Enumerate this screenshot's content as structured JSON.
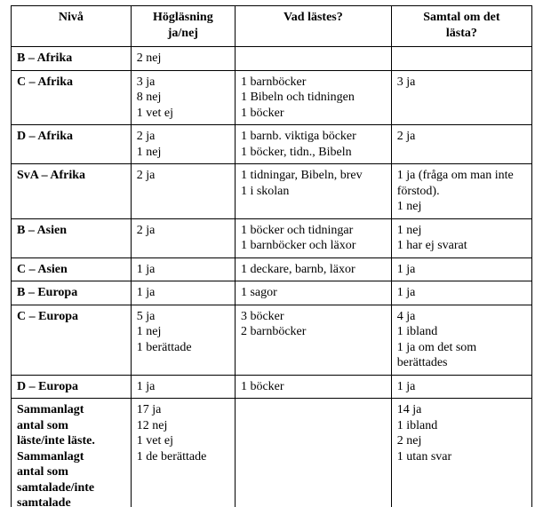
{
  "table": {
    "columns": [
      {
        "l1": "Nivå",
        "l2": ""
      },
      {
        "l1": "Högläsning",
        "l2": "ja/nej"
      },
      {
        "l1": "Vad lästes?",
        "l2": ""
      },
      {
        "l1": "Samtal om det",
        "l2": "lästa?"
      }
    ],
    "rows": [
      {
        "level": "B – Afrika",
        "hoglasning": [
          "2 nej"
        ],
        "vad": [],
        "samtal": []
      },
      {
        "level": "C – Afrika",
        "hoglasning": [
          "3 ja",
          "8 nej",
          "1 vet ej"
        ],
        "vad": [
          "1 barnböcker",
          "1 Bibeln och tidningen",
          "1 böcker"
        ],
        "samtal": [
          "3 ja"
        ]
      },
      {
        "level": "D – Afrika",
        "hoglasning": [
          "2 ja",
          "1 nej"
        ],
        "vad": [
          "1 barnb. viktiga böcker",
          "1 böcker, tidn., Bibeln"
        ],
        "samtal": [
          "2 ja"
        ]
      },
      {
        "level": "SvA – Afrika",
        "hoglasning": [
          "2 ja"
        ],
        "vad": [
          "1 tidningar, Bibeln, brev",
          "1 i skolan"
        ],
        "samtal": [
          "1 ja (fråga om man inte förstod).",
          "1 nej"
        ]
      },
      {
        "level": "B – Asien",
        "hoglasning": [
          "2 ja"
        ],
        "vad": [
          "1 böcker och tidningar",
          "1 barnböcker och läxor"
        ],
        "samtal": [
          "1 nej",
          "1 har ej svarat"
        ]
      },
      {
        "level": "C – Asien",
        "hoglasning": [
          "1 ja"
        ],
        "vad": [
          "1 deckare, barnb, läxor"
        ],
        "samtal": [
          "1 ja"
        ]
      },
      {
        "level": "B – Europa",
        "hoglasning": [
          "1 ja"
        ],
        "vad": [
          "1 sagor"
        ],
        "samtal": [
          "1 ja"
        ]
      },
      {
        "level": "C – Europa",
        "hoglasning": [
          "5 ja",
          "1 nej",
          "1 berättade"
        ],
        "vad": [
          "3 böcker",
          "2 barnböcker"
        ],
        "samtal": [
          "4 ja",
          "1 ibland",
          "1 ja om det som berättades"
        ]
      },
      {
        "level": "D – Europa",
        "hoglasning": [
          "1 ja"
        ],
        "vad": [
          "1 böcker"
        ],
        "samtal": [
          "1 ja"
        ]
      },
      {
        "level_lines": [
          "Sammanlagt",
          "antal som",
          "läste/inte läste.",
          "Sammanlagt",
          "antal som",
          "samtalade/inte",
          "samtalade"
        ],
        "hoglasning": [
          "17 ja",
          "12 nej",
          "1 vet ej",
          "1 de berättade"
        ],
        "vad": [],
        "samtal": [
          "14 ja",
          "1 ibland",
          "2 nej",
          "1 utan svar"
        ]
      }
    ],
    "style": {
      "border_color": "#000000",
      "background_color": "#ffffff",
      "text_color": "#000000",
      "font_family": "Times New Roman",
      "font_size_pt": 11,
      "header_bold": true,
      "level_bold": true
    }
  }
}
